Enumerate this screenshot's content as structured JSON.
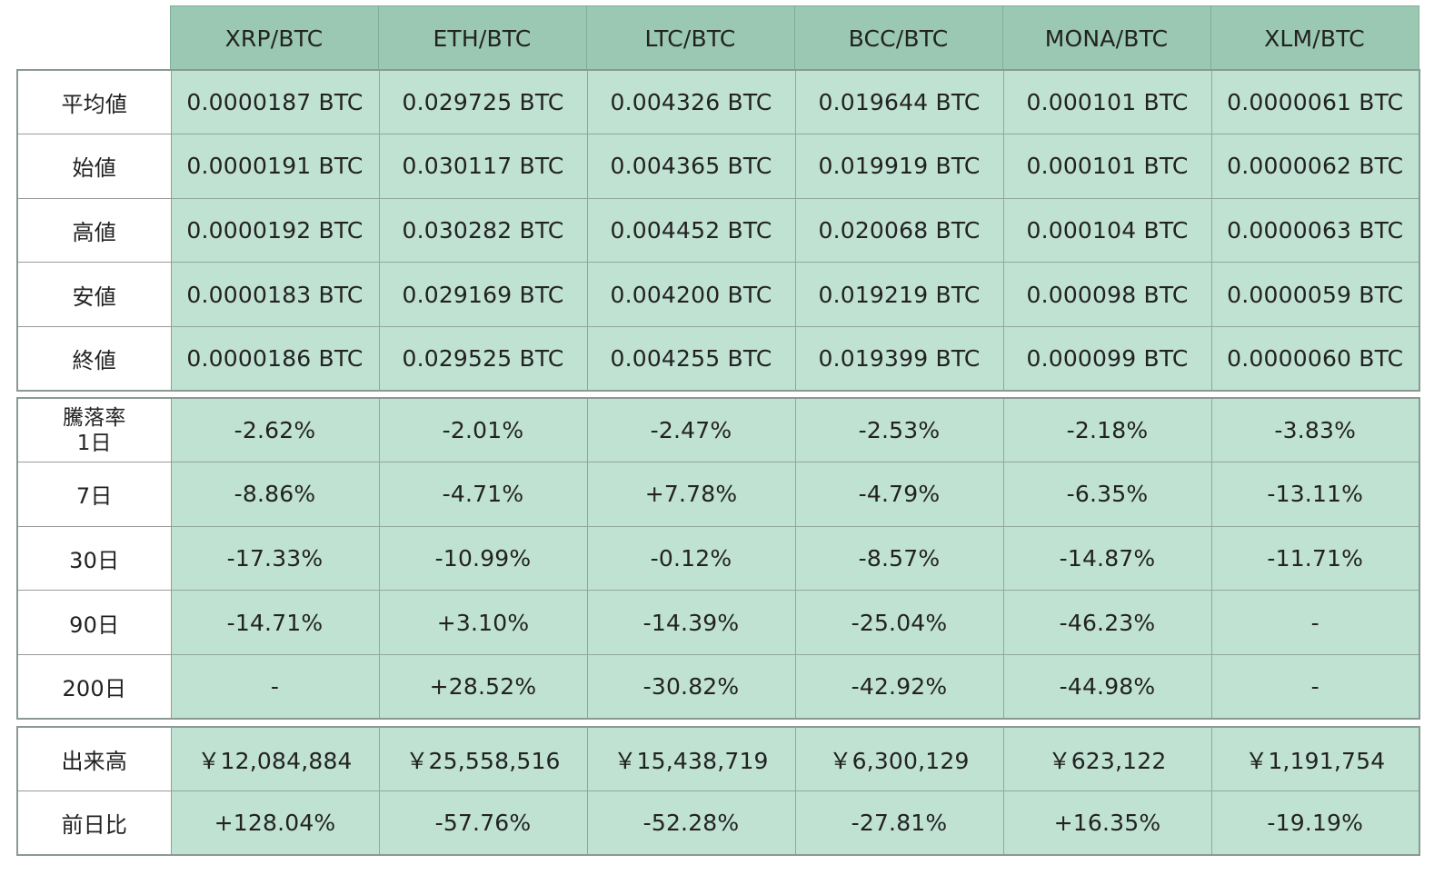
{
  "columns": [
    "XRP/BTC",
    "ETH/BTC",
    "LTC/BTC",
    "BCC/BTC",
    "MONA/BTC",
    "XLM/BTC"
  ],
  "price_rows": [
    {
      "label": "平均値",
      "values": [
        "0.0000187 BTC",
        "0.029725 BTC",
        "0.004326 BTC",
        "0.019644 BTC",
        "0.000101 BTC",
        "0.0000061 BTC"
      ]
    },
    {
      "label": "始値",
      "values": [
        "0.0000191 BTC",
        "0.030117 BTC",
        "0.004365 BTC",
        "0.019919 BTC",
        "0.000101 BTC",
        "0.0000062 BTC"
      ]
    },
    {
      "label": "高値",
      "values": [
        "0.0000192 BTC",
        "0.030282 BTC",
        "0.004452 BTC",
        "0.020068 BTC",
        "0.000104 BTC",
        "0.0000063 BTC"
      ]
    },
    {
      "label": "安値",
      "values": [
        "0.0000183 BTC",
        "0.029169 BTC",
        "0.004200 BTC",
        "0.019219 BTC",
        "0.000098 BTC",
        "0.0000059 BTC"
      ]
    },
    {
      "label": "終値",
      "values": [
        "0.0000186 BTC",
        "0.029525 BTC",
        "0.004255 BTC",
        "0.019399 BTC",
        "0.000099 BTC",
        "0.0000060 BTC"
      ]
    }
  ],
  "change_rows": [
    {
      "label_line1": "騰落率",
      "label_line2": "1日",
      "values": [
        "-2.62%",
        "-2.01%",
        "-2.47%",
        "-2.53%",
        "-2.18%",
        "-3.83%"
      ]
    },
    {
      "label": "7日",
      "values": [
        "-8.86%",
        "-4.71%",
        "+7.78%",
        "-4.79%",
        "-6.35%",
        "-13.11%"
      ]
    },
    {
      "label": "30日",
      "values": [
        "-17.33%",
        "-10.99%",
        "-0.12%",
        "-8.57%",
        "-14.87%",
        "-11.71%"
      ]
    },
    {
      "label": "90日",
      "values": [
        "-14.71%",
        "+3.10%",
        "-14.39%",
        "-25.04%",
        "-46.23%",
        "-"
      ]
    },
    {
      "label": "200日",
      "values": [
        "-",
        "+28.52%",
        "-30.82%",
        "-42.92%",
        "-44.98%",
        "-"
      ]
    }
  ],
  "volume_rows": [
    {
      "label": "出来高",
      "values": [
        "￥12,084,884",
        "￥25,558,516",
        "￥15,438,719",
        "￥6,300,129",
        "￥623,122",
        "￥1,191,754"
      ]
    },
    {
      "label": "前日比",
      "values": [
        "+128.04%",
        "-57.76%",
        "-52.28%",
        "-27.81%",
        "+16.35%",
        "-19.19%"
      ]
    }
  ],
  "colors": {
    "header": "#9bc8b2",
    "cell": "#c0e2d3",
    "label_bg": "#ffffff"
  }
}
